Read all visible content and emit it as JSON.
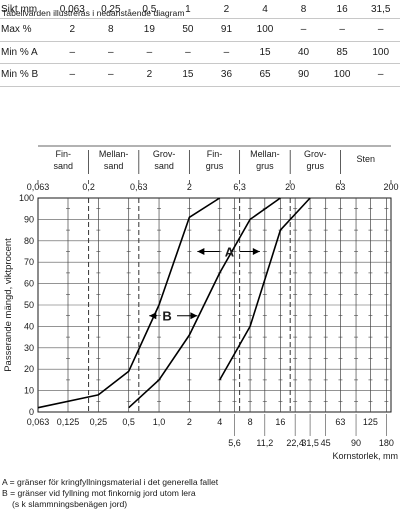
{
  "table": {
    "columns": [
      "Sikt mm",
      "0,063",
      "0,25",
      "0,5",
      "1",
      "2",
      "4",
      "8",
      "16",
      "31,5"
    ],
    "rows": [
      [
        "Max %",
        "2",
        "8",
        "19",
        "50",
        "91",
        "100",
        "–",
        "–",
        "–"
      ],
      [
        "Min % A",
        "–",
        "–",
        "–",
        "–",
        "–",
        "15",
        "40",
        "85",
        "100"
      ],
      [
        "Min % B",
        "–",
        "–",
        "2",
        "15",
        "36",
        "65",
        "90",
        "100",
        "–"
      ]
    ]
  },
  "chart_data": {
    "type": "line",
    "title": "Tabellvärden illustreras i nedanstående diagram",
    "xlabel": "Kornstorlek, mm",
    "ylabel": "Passerande mängd, viktprocent",
    "x_scale": "log",
    "xlim": [
      0.063,
      200
    ],
    "ylim": [
      0,
      100
    ],
    "yticks": [
      "0",
      "10",
      "20",
      "30",
      "40",
      "50",
      "60",
      "70",
      "80",
      "90",
      "100"
    ],
    "xticks_bottom_row1": [
      {
        "v": 0.063,
        "t": "0,063"
      },
      {
        "v": 0.125,
        "t": "0,125"
      },
      {
        "v": 0.25,
        "t": "0,25"
      },
      {
        "v": 0.5,
        "t": "0,5"
      },
      {
        "v": 1,
        "t": "1,0"
      },
      {
        "v": 2,
        "t": "2"
      },
      {
        "v": 4,
        "t": "4"
      },
      {
        "v": 8,
        "t": "8"
      },
      {
        "v": 16,
        "t": "16"
      },
      {
        "v": 63,
        "t": "63"
      },
      {
        "v": 125,
        "t": "125"
      }
    ],
    "xticks_bottom_row2": [
      {
        "v": 5.6,
        "t": "5,6"
      },
      {
        "v": 11.2,
        "t": "11,2"
      },
      {
        "v": 22.4,
        "t": "22,4"
      },
      {
        "v": 31.5,
        "t": "31,5"
      },
      {
        "v": 45,
        "t": "45"
      },
      {
        "v": 90,
        "t": "90"
      },
      {
        "v": 180,
        "t": "180"
      }
    ],
    "xticks_top": [
      {
        "v": 0.063,
        "t": "0,063"
      },
      {
        "v": 0.2,
        "t": "0,2"
      },
      {
        "v": 0.63,
        "t": "0,63"
      },
      {
        "v": 2,
        "t": "2"
      },
      {
        "v": 6.3,
        "t": "6,3"
      },
      {
        "v": 20,
        "t": "20"
      },
      {
        "v": 63,
        "t": "63"
      },
      {
        "v": 200,
        "t": "200"
      }
    ],
    "fraction_boundaries": [
      0.2,
      0.63,
      6.3,
      20
    ],
    "fractions": [
      {
        "lo": 0.063,
        "hi": 0.2,
        "l1": "Fin-",
        "l2": "sand"
      },
      {
        "lo": 0.2,
        "hi": 0.63,
        "l1": "Mellan-",
        "l2": "sand"
      },
      {
        "lo": 0.63,
        "hi": 2,
        "l1": "Grov-",
        "l2": "sand"
      },
      {
        "lo": 2,
        "hi": 6.3,
        "l1": "Fin-",
        "l2": "grus"
      },
      {
        "lo": 6.3,
        "hi": 20,
        "l1": "Mellan-",
        "l2": "grus"
      },
      {
        "lo": 20,
        "hi": 63,
        "l1": "Grov-",
        "l2": "grus"
      },
      {
        "lo": 63,
        "hi": 200,
        "l1": "Sten",
        "l2": ""
      }
    ],
    "series": [
      {
        "id": "max",
        "x": [
          0.063,
          0.25,
          0.5,
          1,
          2,
          4
        ],
        "y": [
          2,
          8,
          19,
          50,
          91,
          100
        ]
      },
      {
        "id": "min_a",
        "x": [
          4,
          8,
          16,
          31.5
        ],
        "y": [
          15,
          40,
          85,
          100
        ]
      },
      {
        "id": "min_b",
        "x": [
          0.5,
          1,
          2,
          4,
          8,
          16
        ],
        "y": [
          2,
          15,
          36,
          65,
          90,
          100
        ]
      }
    ],
    "annotations": [
      {
        "t": "A",
        "x": 5,
        "y": 75,
        "from": 2.4,
        "to": 10
      },
      {
        "t": "B",
        "x": 1.2,
        "y": 45,
        "from": 0.8,
        "to": 2.4
      }
    ]
  },
  "notes": {
    "a": "A = gränser för kringfyllningsmaterial i det generella fallet",
    "b": "B = gränser vid fyllning mot finkornig jord utom lera",
    "b2": "(s k slammningsbenägen jord)"
  }
}
